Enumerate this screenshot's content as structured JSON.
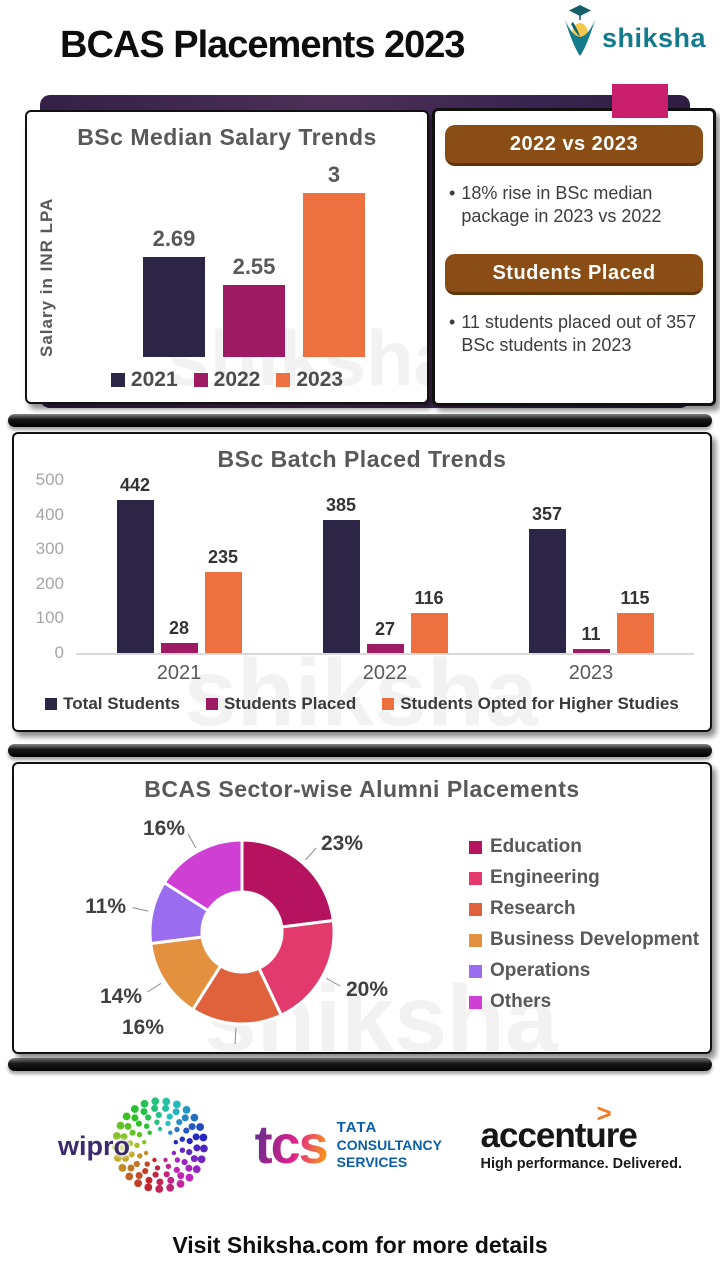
{
  "header": {
    "title": "BCAS Placements 2023",
    "brand": "shiksha"
  },
  "highlights": {
    "box1_title": "2022 vs 2023",
    "box1_text": "18% rise in BSc median package in 2023 vs 2022",
    "box2_title": "Students Placed",
    "box2_text": "11 students placed out of 357 BSc students in 2023"
  },
  "chart_data": [
    {
      "type": "bar",
      "title": "BSc Median Salary Trends",
      "xlabel": "",
      "ylabel": "Salary in INR LPA",
      "categories": [
        "2021",
        "2022",
        "2023"
      ],
      "values": [
        2.69,
        2.55,
        3
      ],
      "value_labels": [
        "2.69",
        "2.55",
        "3"
      ],
      "colors": [
        "#2d2545",
        "#9e1a62",
        "#ed7140"
      ],
      "ylim": [
        2.2,
        3.1
      ],
      "grid": false,
      "legend_position": "bottom"
    },
    {
      "type": "bar",
      "title": "BSc Batch Placed Trends",
      "categories": [
        "2021",
        "2022",
        "2023"
      ],
      "series": [
        {
          "name": "Total Students",
          "values": [
            442,
            385,
            357
          ],
          "color": "#2d2545"
        },
        {
          "name": "Students Placed",
          "values": [
            28,
            27,
            11
          ],
          "color": "#9e1a62"
        },
        {
          "name": "Students Opted for Higher Studies",
          "values": [
            235,
            116,
            115
          ],
          "color": "#ed7140"
        }
      ],
      "yticks": [
        0,
        100,
        200,
        300,
        400,
        500
      ],
      "ylim": [
        0,
        500
      ],
      "grid": false,
      "legend_position": "bottom"
    },
    {
      "type": "pie",
      "donut": true,
      "title": "BCAS Sector-wise Alumni Placements",
      "labels": [
        "Education",
        "Engineering",
        "Research",
        "Business Development",
        "Operations",
        "Others"
      ],
      "values": [
        23,
        20,
        16,
        14,
        11,
        16
      ],
      "pct_labels": [
        "23%",
        "20%",
        "16%",
        "14%",
        "11%",
        "16%"
      ],
      "colors": [
        "#b5135f",
        "#e23a6d",
        "#e0623c",
        "#e3913f",
        "#9a6cf0",
        "#cf3fd4"
      ],
      "legend_position": "right"
    }
  ],
  "recruiters": {
    "wipro": "wipro",
    "tcs": "tcs",
    "tcs_sub1": "TATA",
    "tcs_sub2": "CONSULTANCY",
    "tcs_sub3": "SERVICES",
    "accenture": "accenture",
    "accenture_mark": ">",
    "accenture_tag": "High performance. Delivered."
  },
  "footer": {
    "text": "Visit Shiksha.com for more details"
  },
  "watermark": "shiksha"
}
